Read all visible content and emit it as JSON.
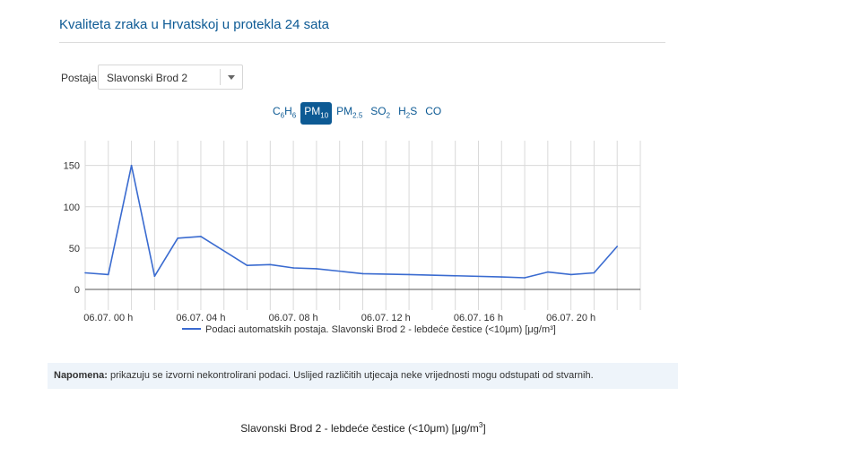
{
  "page": {
    "title": "Kvaliteta zraka u Hrvatskoj u protekla 24 sata"
  },
  "station": {
    "label": "Postaja",
    "selected": "Slavonski Brod 2"
  },
  "pollutants": [
    {
      "base": "C",
      "sub1": "6",
      "mid": "H",
      "sub2": "6",
      "active": false,
      "id": "c6h6"
    },
    {
      "base": "PM",
      "sub1": "10",
      "mid": "",
      "sub2": "",
      "active": true,
      "id": "pm10"
    },
    {
      "base": "PM",
      "sub1": "2.5",
      "mid": "",
      "sub2": "",
      "active": false,
      "id": "pm25"
    },
    {
      "base": "SO",
      "sub1": "2",
      "mid": "",
      "sub2": "",
      "active": false,
      "id": "so2"
    },
    {
      "base": "H",
      "sub1": "2",
      "mid": "S",
      "sub2": "",
      "active": false,
      "id": "h2s"
    },
    {
      "base": "CO",
      "sub1": "",
      "mid": "",
      "sub2": "",
      "active": false,
      "id": "co"
    }
  ],
  "note": {
    "label": "Napomena:",
    "text": " prikazuju se izvorni nekontrolirani podaci. Uslijed različitih utjecaja neke vrijednosti mogu odstupati od stvarnih."
  },
  "subtitle": {
    "text": "Slavonski Brod 2 - lebdeće čestice (<10μm) [μg/m",
    "sup": "3",
    "close": "]"
  },
  "colors": {
    "accent": "#0d5a94",
    "series": "#3a6bd0",
    "grid": "#d9d9d9",
    "zero": "#555555"
  },
  "chart_data": {
    "type": "line",
    "legend": "Podaci automatskih postaja. Slavonski Brod 2 - lebdeće čestice (<10μm) [μg/m³]",
    "legend_position": "bottom-center",
    "grid": true,
    "x_hours": [
      0,
      1,
      2,
      3,
      4,
      5,
      6,
      7,
      8,
      9,
      10,
      11,
      12,
      13,
      14,
      15,
      16,
      17,
      18,
      19,
      20,
      21,
      22,
      23
    ],
    "x_tick_labels": [
      "06.07. 00 h",
      "06.07. 04 h",
      "06.07. 08 h",
      "06.07. 12 h",
      "06.07. 16 h",
      "06.07. 20 h"
    ],
    "x_tick_hours": [
      0,
      4,
      8,
      12,
      16,
      20
    ],
    "xlim_hours": [
      -1,
      23
    ],
    "y_ticks": [
      0,
      50,
      100,
      150
    ],
    "ylim": [
      -25,
      180
    ],
    "series": [
      {
        "name": "Podaci automatskih postaja. Slavonski Brod 2 - lebdeće čestice (<10μm) [μg/m³]",
        "points": [
          [
            -1,
            20
          ],
          [
            0,
            18
          ],
          [
            1,
            150
          ],
          [
            2,
            16
          ],
          [
            3,
            62
          ],
          [
            4,
            64
          ],
          [
            6,
            29
          ],
          [
            7,
            30
          ],
          [
            8,
            26
          ],
          [
            9,
            25
          ],
          [
            11,
            19
          ],
          [
            13,
            18
          ],
          [
            17,
            15
          ],
          [
            18,
            14
          ],
          [
            19,
            21
          ],
          [
            20,
            18
          ],
          [
            21,
            20
          ],
          [
            22,
            52
          ]
        ]
      }
    ]
  }
}
